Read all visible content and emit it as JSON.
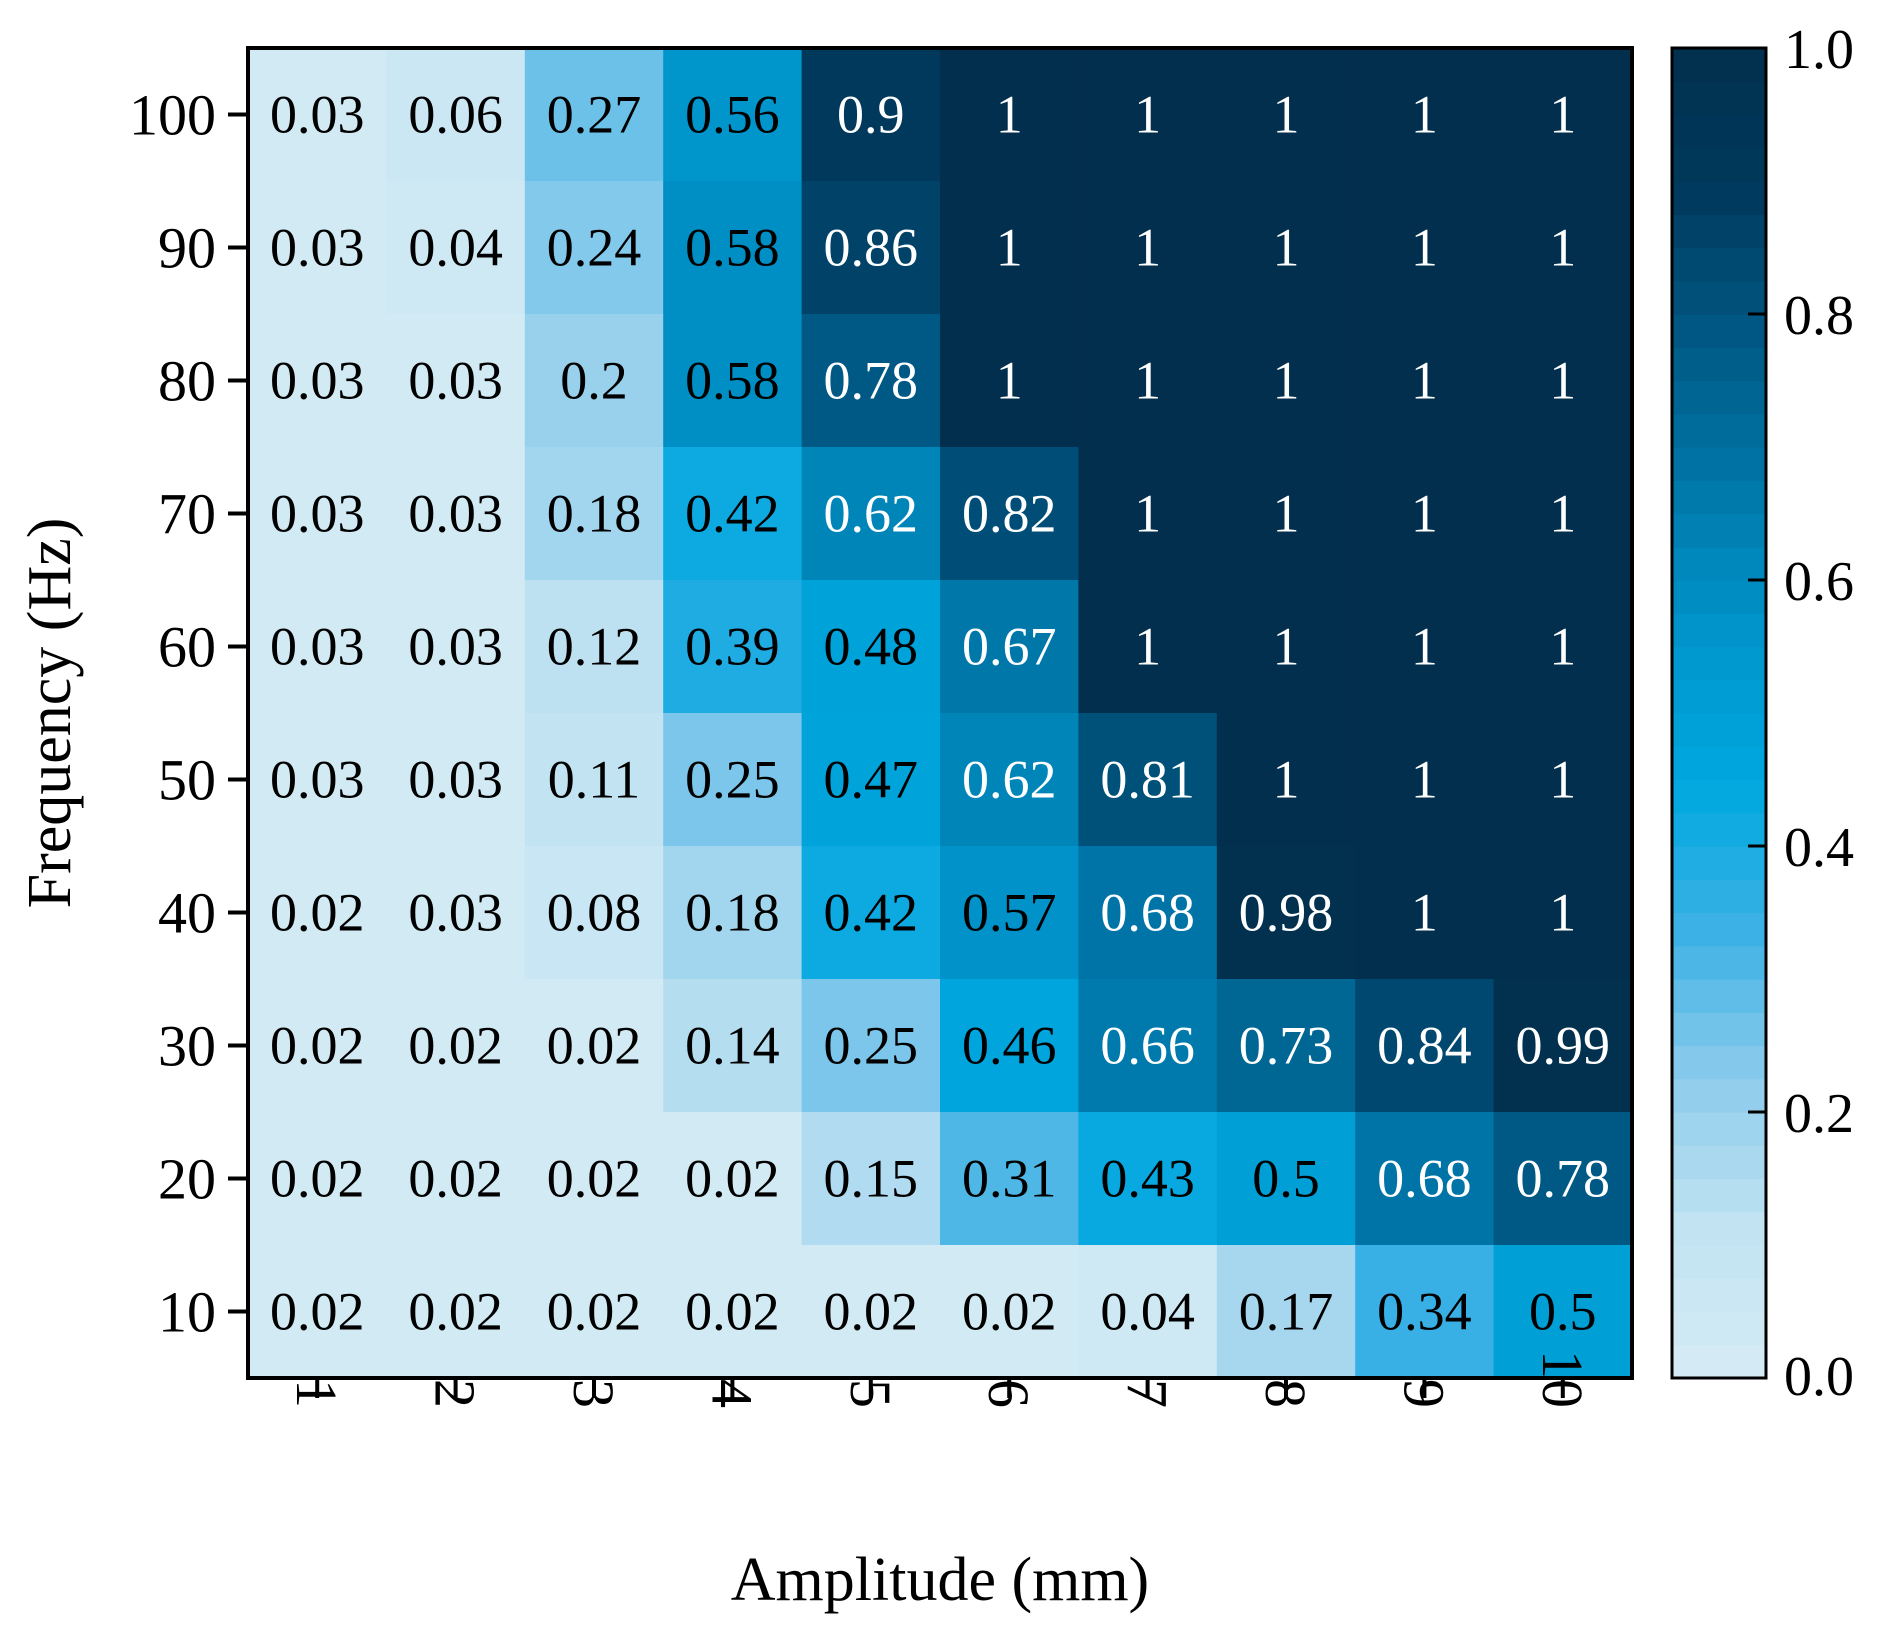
{
  "chart_data": {
    "type": "heatmap",
    "xlabel": "Amplitude (mm)",
    "ylabel": "Frequency (Hz)",
    "x": [
      "1",
      "2",
      "3",
      "4",
      "5",
      "6",
      "7",
      "8",
      "9",
      "10"
    ],
    "y": [
      "100",
      "90",
      "80",
      "70",
      "60",
      "50",
      "40",
      "30",
      "20",
      "10"
    ],
    "values": [
      [
        0.03,
        0.06,
        0.27,
        0.56,
        0.9,
        1,
        1,
        1,
        1,
        1
      ],
      [
        0.03,
        0.04,
        0.24,
        0.58,
        0.86,
        1,
        1,
        1,
        1,
        1
      ],
      [
        0.03,
        0.03,
        0.2,
        0.58,
        0.78,
        1,
        1,
        1,
        1,
        1
      ],
      [
        0.03,
        0.03,
        0.18,
        0.42,
        0.62,
        0.82,
        1,
        1,
        1,
        1
      ],
      [
        0.03,
        0.03,
        0.12,
        0.39,
        0.48,
        0.67,
        1,
        1,
        1,
        1
      ],
      [
        0.03,
        0.03,
        0.11,
        0.25,
        0.47,
        0.62,
        0.81,
        1,
        1,
        1
      ],
      [
        0.02,
        0.03,
        0.08,
        0.18,
        0.42,
        0.57,
        0.68,
        0.98,
        1,
        1
      ],
      [
        0.02,
        0.02,
        0.02,
        0.14,
        0.25,
        0.46,
        0.66,
        0.73,
        0.84,
        0.99
      ],
      [
        0.02,
        0.02,
        0.02,
        0.02,
        0.15,
        0.31,
        0.43,
        0.5,
        0.68,
        0.78
      ],
      [
        0.02,
        0.02,
        0.02,
        0.02,
        0.02,
        0.02,
        0.04,
        0.17,
        0.34,
        0.5
      ]
    ],
    "colorbar": {
      "range": [
        0.0,
        1.0
      ],
      "ticks": [
        "0.0",
        "0.2",
        "0.4",
        "0.6",
        "0.8",
        "1.0"
      ],
      "colors": [
        "#d6ecf5",
        "#c2e3f2",
        "#8fcdec",
        "#3db1e5",
        "#00a8e0",
        "#0096cc",
        "#0078aa",
        "#005a86",
        "#003a5e",
        "#022f4d"
      ]
    },
    "grid": false
  }
}
